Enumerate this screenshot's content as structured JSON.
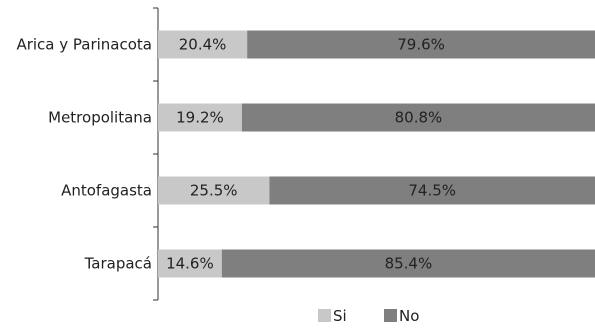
{
  "chart_data": {
    "type": "bar",
    "orientation": "horizontal",
    "stacked": true,
    "percent": true,
    "categories": [
      "Arica y Parinacota",
      "Metropolitana",
      "Antofagasta",
      "Tarapacá"
    ],
    "series": [
      {
        "name": "Si",
        "values": [
          20.4,
          19.2,
          25.5,
          14.6
        ],
        "labels": [
          "20.4%",
          "19.2%",
          "25.5%",
          "14.6%"
        ],
        "color": "#c8c8c8"
      },
      {
        "name": "No",
        "values": [
          79.6,
          80.8,
          74.5,
          85.4
        ],
        "labels": [
          "79.6%",
          "80.8%",
          "74.5%",
          "85.4%"
        ],
        "color": "#7f7f7f"
      }
    ],
    "xlim": [
      0,
      100
    ],
    "grid": false,
    "legend_position": "bottom"
  }
}
